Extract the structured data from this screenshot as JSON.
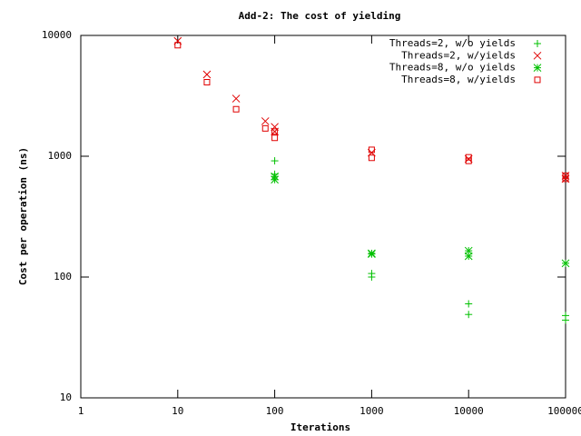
{
  "chart_data": {
    "type": "scatter",
    "title": "Add-2: The cost of yielding",
    "x_label": "Iterations",
    "y_label": "Cost per operation (ns)",
    "x_log": true,
    "y_log": true,
    "legend": "top-right",
    "xlim": [
      1,
      100000
    ],
    "ylim": [
      10,
      10000
    ],
    "xticks": [
      1,
      10,
      100,
      1000,
      10000,
      100000
    ],
    "yticks": [
      10,
      100,
      1000,
      10000
    ],
    "series": [
      {
        "name": "Threads=2, w/o yields",
        "color": "#00c000",
        "marker": "plus",
        "x": [
          100,
          100,
          1000,
          1000,
          10000,
          10000,
          100000,
          100000
        ],
        "values": [
          916,
          710,
          107,
          100,
          60,
          49,
          48,
          44
        ]
      },
      {
        "name": "Threads=2, w/yields",
        "color": "#e00000",
        "marker": "cross",
        "x": [
          10,
          20,
          40,
          80,
          100,
          100,
          1000,
          10000,
          100000,
          100000
        ],
        "values": [
          9000,
          4750,
          3000,
          1950,
          1750,
          1600,
          1070,
          950,
          690,
          650
        ]
      },
      {
        "name": "Threads=8, w/o yields",
        "color": "#00c000",
        "marker": "star",
        "x": [
          100,
          100,
          1000,
          1000,
          10000,
          10000,
          100000
        ],
        "values": [
          680,
          640,
          157,
          155,
          165,
          149,
          130
        ]
      },
      {
        "name": "Threads=8, w/yields",
        "color": "#e00000",
        "marker": "square",
        "x": [
          10,
          20,
          40,
          80,
          100,
          100,
          1000,
          1000,
          10000,
          10000,
          100000,
          100000
        ],
        "values": [
          8300,
          4100,
          2450,
          1700,
          1600,
          1420,
          1130,
          970,
          980,
          915,
          690,
          650
        ]
      }
    ]
  }
}
